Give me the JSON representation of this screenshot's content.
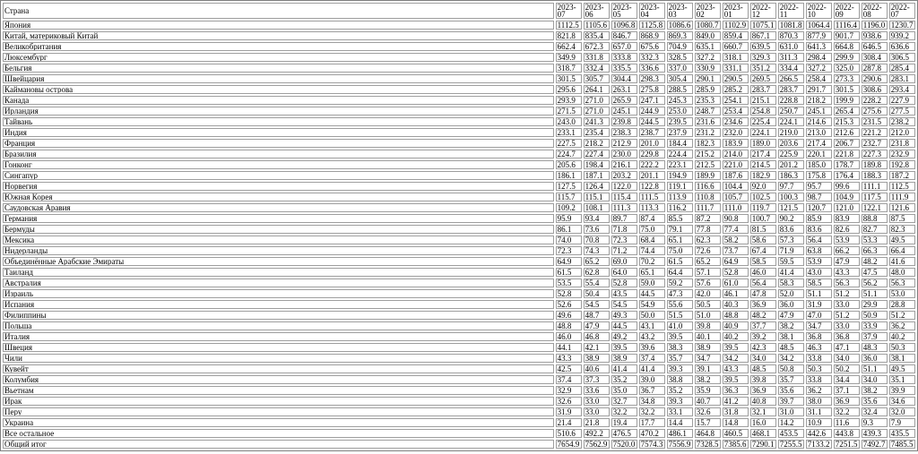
{
  "table": {
    "title": "country-monthly-values",
    "header": [
      "Страна",
      "2023-07",
      "2023-06",
      "2023-05",
      "2023-04",
      "2023-03",
      "2023-02",
      "2023-01",
      "2022-12",
      "2022-11",
      "2022-10",
      "2022-09",
      "2022-08",
      "2022-07"
    ],
    "rows": [
      {
        "country": "Япония",
        "values": [
          "1112.5",
          "1105.6",
          "1096.8",
          "1125.8",
          "1086.6",
          "1080.7",
          "1102.9",
          "1075.1",
          "1081.8",
          "1064.4",
          "1116.4",
          "1196.0",
          "1230.7"
        ]
      },
      {
        "country": "Китай, материковый Китай",
        "values": [
          "821.8",
          "835.4",
          "846.7",
          "868.9",
          "869.3",
          "849.0",
          "859.4",
          "867.1",
          "870.3",
          "877.9",
          "901.7",
          "938.6",
          "939.2"
        ]
      },
      {
        "country": "Великобритания",
        "values": [
          "662.4",
          "672.3",
          "657.0",
          "675.6",
          "704.9",
          "635.1",
          "660.7",
          "639.5",
          "631.0",
          "641.3",
          "664.8",
          "646.5",
          "636.6"
        ]
      },
      {
        "country": "Люксембург",
        "values": [
          "349.9",
          "331.8",
          "333.8",
          "332.3",
          "328.5",
          "327.2",
          "318.1",
          "329.3",
          "311.3",
          "298.4",
          "299.9",
          "308.4",
          "306.5"
        ]
      },
      {
        "country": "Бельгия",
        "values": [
          "318.7",
          "332.4",
          "335.5",
          "336.6",
          "337.0",
          "330.9",
          "331.1",
          "351.2",
          "334.4",
          "327.2",
          "325.0",
          "287.8",
          "285.4"
        ]
      },
      {
        "country": "Швейцария",
        "values": [
          "301.5",
          "305.7",
          "304.4",
          "298.3",
          "305.4",
          "290.1",
          "290.5",
          "269.5",
          "266.5",
          "258.4",
          "273.3",
          "290.6",
          "283.1"
        ]
      },
      {
        "country": "Каймановы острова",
        "values": [
          "295.6",
          "264.1",
          "263.1",
          "275.8",
          "288.5",
          "285.9",
          "285.2",
          "283.7",
          "283.7",
          "291.7",
          "301.5",
          "308.6",
          "293.4"
        ]
      },
      {
        "country": "Канада",
        "values": [
          "293.9",
          "271.0",
          "265.9",
          "247.1",
          "245.3",
          "235.3",
          "254.1",
          "215.1",
          "228.8",
          "218.2",
          "199.9",
          "228.2",
          "227.9"
        ]
      },
      {
        "country": "Ирландия",
        "values": [
          "271.5",
          "271.0",
          "245.1",
          "244.9",
          "253.0",
          "248.7",
          "253.4",
          "254.8",
          "250.7",
          "245.1",
          "265.4",
          "275.6",
          "277.5"
        ]
      },
      {
        "country": "Тайвань",
        "values": [
          "243.0",
          "241.3",
          "239.8",
          "244.5",
          "239.5",
          "231.6",
          "234.6",
          "225.4",
          "224.1",
          "214.6",
          "215.3",
          "231.5",
          "238.2"
        ]
      },
      {
        "country": "Индия",
        "values": [
          "233.1",
          "235.4",
          "238.3",
          "238.7",
          "237.9",
          "231.2",
          "232.0",
          "224.1",
          "219.0",
          "213.0",
          "212.6",
          "221.2",
          "212.0"
        ]
      },
      {
        "country": "Франция",
        "values": [
          "227.5",
          "218.2",
          "212.9",
          "201.0",
          "184.4",
          "182.3",
          "183.9",
          "189.0",
          "203.6",
          "217.4",
          "206.7",
          "232.7",
          "231.8"
        ]
      },
      {
        "country": "Бразилия",
        "values": [
          "224.7",
          "227.4",
          "230.0",
          "229.8",
          "224.4",
          "215.2",
          "214.0",
          "217.4",
          "225.9",
          "220.1",
          "221.8",
          "227.3",
          "232.9"
        ]
      },
      {
        "country": "Гонконг",
        "values": [
          "205.6",
          "198.4",
          "216.1",
          "222.2",
          "223.1",
          "212.5",
          "221.0",
          "214.5",
          "201.2",
          "185.0",
          "178.7",
          "189.8",
          "192.8"
        ]
      },
      {
        "country": "Сингапур",
        "values": [
          "186.1",
          "187.1",
          "203.2",
          "201.1",
          "194.9",
          "189.9",
          "187.6",
          "182.9",
          "186.3",
          "175.8",
          "176.4",
          "188.3",
          "187.2"
        ]
      },
      {
        "country": "Норвегия",
        "values": [
          "127.5",
          "126.4",
          "122.0",
          "122.8",
          "119.1",
          "116.6",
          "104.4",
          "92.0",
          "97.7",
          "95.7",
          "99.6",
          "111.1",
          "112.5"
        ]
      },
      {
        "country": "Южная Корея",
        "values": [
          "115.7",
          "115.1",
          "115.4",
          "111.5",
          "113.9",
          "110.8",
          "105.7",
          "102.5",
          "100.3",
          "98.7",
          "104.9",
          "117.5",
          "111.9"
        ]
      },
      {
        "country": "Саудовская Аравия",
        "values": [
          "109.2",
          "108.1",
          "111.3",
          "113.3",
          "116.2",
          "111.7",
          "111.0",
          "119.7",
          "121.5",
          "120.7",
          "121.0",
          "122.1",
          "121.6"
        ]
      },
      {
        "country": "Германия",
        "values": [
          "95.9",
          "93.4",
          "89.7",
          "87.4",
          "85.5",
          "87.2",
          "90.8",
          "100.7",
          "90.2",
          "85.9",
          "83.9",
          "88.8",
          "87.5"
        ]
      },
      {
        "country": "Бермуды",
        "values": [
          "86.1",
          "73.6",
          "71.8",
          "75.0",
          "79.1",
          "77.8",
          "77.4",
          "81.5",
          "83.6",
          "83.6",
          "82.6",
          "82.7",
          "82.3"
        ]
      },
      {
        "country": "Мексика",
        "values": [
          "74.0",
          "70.8",
          "72.3",
          "68.4",
          "65.1",
          "62.3",
          "58.2",
          "58.6",
          "57.3",
          "56.4",
          "53.9",
          "53.3",
          "49.5"
        ]
      },
      {
        "country": "Нидерланды",
        "values": [
          "72.3",
          "74.3",
          "71.2",
          "74.4",
          "75.0",
          "72.6",
          "73.7",
          "67.4",
          "71.9",
          "63.8",
          "66.2",
          "66.3",
          "66.4"
        ]
      },
      {
        "country": "Объединённые Арабские Эмираты",
        "values": [
          "64.9",
          "65.2",
          "69.0",
          "70.2",
          "61.5",
          "65.2",
          "64.9",
          "58.5",
          "59.5",
          "53.9",
          "47.9",
          "48.2",
          "41.6"
        ]
      },
      {
        "country": "Таиланд",
        "values": [
          "61.5",
          "62.8",
          "64.0",
          "65.1",
          "64.4",
          "57.1",
          "52.8",
          "46.0",
          "41.4",
          "43.0",
          "43.3",
          "47.5",
          "48.0"
        ]
      },
      {
        "country": "Австралия",
        "values": [
          "53.5",
          "55.4",
          "52.8",
          "59.0",
          "59.2",
          "57.6",
          "61.0",
          "56.4",
          "58.3",
          "58.5",
          "56.3",
          "56.2",
          "56.3"
        ]
      },
      {
        "country": "Израиль",
        "values": [
          "52.8",
          "50.4",
          "43.5",
          "44.5",
          "47.3",
          "42.0",
          "46.1",
          "47.8",
          "52.0",
          "51.1",
          "51.2",
          "51.1",
          "53.0"
        ]
      },
      {
        "country": "Испания",
        "values": [
          "52.6",
          "54.5",
          "54.5",
          "54.9",
          "55.6",
          "50.5",
          "40.3",
          "36.9",
          "36.0",
          "31.9",
          "33.0",
          "29.9",
          "28.8"
        ]
      },
      {
        "country": "Филиппины",
        "values": [
          "49.6",
          "48.7",
          "49.3",
          "50.0",
          "51.5",
          "51.0",
          "48.8",
          "48.2",
          "47.9",
          "47.0",
          "51.2",
          "50.9",
          "51.2"
        ]
      },
      {
        "country": "Польша",
        "values": [
          "48.8",
          "47.9",
          "44.5",
          "43.1",
          "41.0",
          "39.8",
          "40.9",
          "37.7",
          "38.2",
          "34.7",
          "33.0",
          "33.9",
          "36.2"
        ]
      },
      {
        "country": "Италия",
        "values": [
          "46.0",
          "46.8",
          "49.2",
          "43.2",
          "39.5",
          "40.1",
          "40.2",
          "39.2",
          "38.1",
          "36.8",
          "36.8",
          "37.9",
          "40.2"
        ]
      },
      {
        "country": "Швеция",
        "values": [
          "44.1",
          "42.1",
          "39.5",
          "39.6",
          "38.3",
          "38.9",
          "39.5",
          "42.3",
          "48.5",
          "46.3",
          "47.1",
          "48.3",
          "50.3"
        ]
      },
      {
        "country": "Чили",
        "values": [
          "43.3",
          "38.9",
          "38.9",
          "37.4",
          "35.7",
          "34.7",
          "34.2",
          "34.0",
          "34.2",
          "33.8",
          "34.0",
          "36.0",
          "38.1"
        ]
      },
      {
        "country": "Кувейт",
        "values": [
          "42.5",
          "40.6",
          "41.4",
          "41.4",
          "39.3",
          "39.1",
          "43.3",
          "48.5",
          "50.8",
          "50.3",
          "50.2",
          "51.1",
          "49.5"
        ]
      },
      {
        "country": "Колумбия",
        "values": [
          "37.4",
          "37.3",
          "35.2",
          "39.0",
          "38.8",
          "38.2",
          "39.5",
          "39.8",
          "35.7",
          "33.8",
          "34.4",
          "34.0",
          "35.1"
        ]
      },
      {
        "country": "Вьетнам",
        "values": [
          "32.9",
          "33.6",
          "35.0",
          "36.7",
          "35.2",
          "35.9",
          "36.3",
          "36.9",
          "35.6",
          "36.2",
          "37.1",
          "38.2",
          "39.9"
        ]
      },
      {
        "country": "Ирак",
        "values": [
          "32.6",
          "33.0",
          "32.7",
          "34.8",
          "39.3",
          "40.7",
          "41.2",
          "40.8",
          "39.7",
          "38.0",
          "36.9",
          "35.6",
          "34.6"
        ]
      },
      {
        "country": "Перу",
        "values": [
          "31.9",
          "33.0",
          "32.2",
          "32.2",
          "33.1",
          "32.6",
          "31.8",
          "32.1",
          "31.0",
          "31.1",
          "32.2",
          "32.4",
          "32.0"
        ]
      },
      {
        "country": "Украина",
        "values": [
          "21.4",
          "21.8",
          "19.4",
          "17.7",
          "14.4",
          "15.7",
          "14.8",
          "16.0",
          "14.2",
          "10.9",
          "11.6",
          "9.3",
          "7.9"
        ]
      },
      {
        "country": "Все остальное",
        "values": [
          "510.6",
          "492.2",
          "476.5",
          "470.2",
          "486.1",
          "464.8",
          "460.5",
          "468.1",
          "453.5",
          "442.6",
          "443.8",
          "439.3",
          "435.5"
        ]
      },
      {
        "country": "Общий итог",
        "values": [
          "7654.9",
          "7562.9",
          "7520.0",
          "7574.3",
          "7556.9",
          "7328.5",
          "7385.6",
          "7290.1",
          "7255.5",
          "7133.2",
          "7251.5",
          "7492.7",
          "7485.5"
        ]
      }
    ]
  }
}
